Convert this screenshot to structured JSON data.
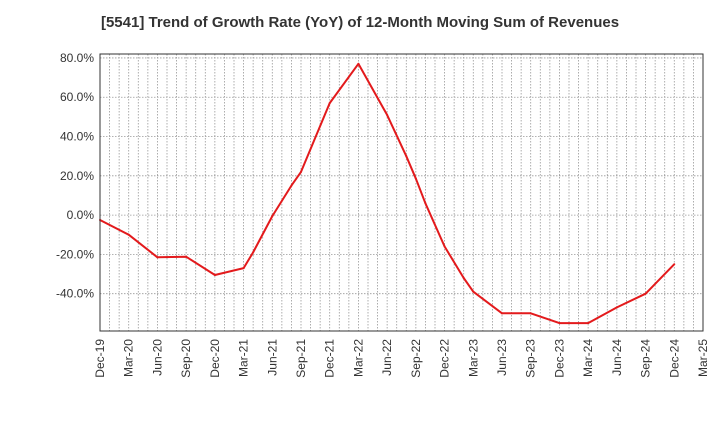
{
  "chart_data": {
    "type": "line",
    "title": "[5541]  Trend of Growth Rate (YoY) of 12-Month Moving Sum of Revenues",
    "xlabel": "",
    "ylabel": "",
    "x_tick_labels": [
      "Dec-19",
      "Mar-20",
      "Jun-20",
      "Sep-20",
      "Dec-20",
      "Mar-21",
      "Jun-21",
      "Sep-21",
      "Dec-21",
      "Mar-22",
      "Jun-22",
      "Sep-22",
      "Dec-22",
      "Mar-23",
      "Jun-23",
      "Sep-23",
      "Dec-23",
      "Mar-24",
      "Jun-24",
      "Sep-24",
      "Dec-24",
      "Mar-25"
    ],
    "x_tick_months": [
      0,
      3,
      6,
      9,
      12,
      15,
      18,
      21,
      24,
      27,
      30,
      33,
      36,
      39,
      42,
      45,
      48,
      51,
      54,
      57,
      60,
      63
    ],
    "y_ticks": [
      80,
      60,
      40,
      20,
      0,
      -20,
      -40
    ],
    "y_tick_labels": [
      "80.0%",
      "60.0%",
      "40.0%",
      "20.0%",
      "0.0%",
      "-20.0%",
      "-40.0%"
    ],
    "ylim": [
      -59,
      82
    ],
    "grid": true,
    "series": [
      {
        "color": "#e31a1c",
        "x_months": [
          0,
          3,
          6,
          9,
          12,
          15,
          16,
          18,
          20,
          21,
          24,
          27,
          30,
          32,
          33,
          34,
          36,
          38,
          39,
          42,
          45,
          48,
          51,
          54,
          57,
          60
        ],
        "x": [
          "Dec-19",
          "Mar-20",
          "Jun-20",
          "Sep-20",
          "Dec-20",
          "Mar-21",
          "Apr-21",
          "Jun-21",
          "Aug-21",
          "Sep-21",
          "Dec-21",
          "Mar-22",
          "Jun-22",
          "Aug-22",
          "Sep-22",
          "Oct-22",
          "Dec-22",
          "Feb-23",
          "Mar-23",
          "Jun-23",
          "Sep-23",
          "Dec-23",
          "Mar-24",
          "Jun-24",
          "Sep-24",
          "Dec-24"
        ],
        "values": [
          -2.5,
          -10,
          -21.5,
          -21.2,
          -30.5,
          -27,
          -19,
          -0.5,
          15,
          22,
          57,
          77,
          51,
          30,
          18.5,
          6,
          -16,
          -32,
          -39,
          -50,
          -50,
          -55,
          -55,
          -47,
          -40,
          -25
        ]
      }
    ]
  }
}
